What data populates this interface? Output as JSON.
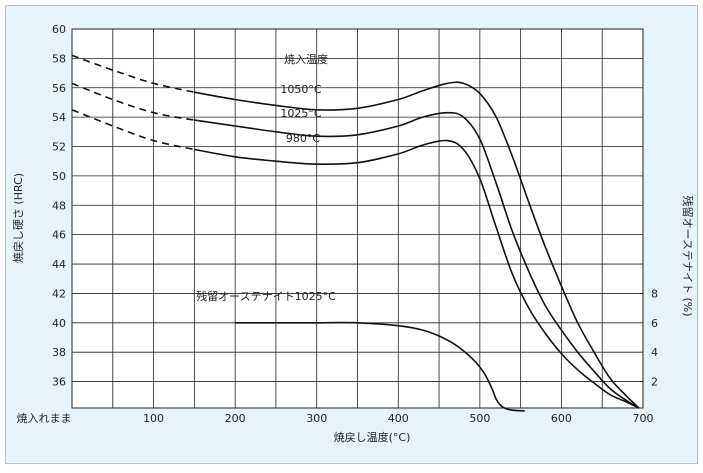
{
  "chart_data": {
    "type": "line",
    "title": "",
    "xlabel": "焼戻し温度(°C)",
    "ylabel": "焼戻し硬さ (HRC)",
    "y2label": "残留オーステナイト (%)",
    "x_ticks": [
      "焼入れまま",
      "100",
      "200",
      "300",
      "400",
      "500",
      "600",
      "700"
    ],
    "x_tick_values": [
      0,
      100,
      200,
      300,
      400,
      500,
      600,
      700
    ],
    "y_ticks": [
      36,
      38,
      40,
      42,
      44,
      46,
      48,
      50,
      52,
      54,
      56,
      58,
      60
    ],
    "y2_ticks": [
      2,
      4,
      6,
      8
    ],
    "xlim": [
      0,
      700
    ],
    "ylim": [
      34.2,
      60
    ],
    "y2lim": [
      0,
      8
    ],
    "grid": true,
    "legend_title": "焼入温度",
    "series": [
      {
        "name": "1050°C",
        "axis": "left",
        "dashed_until": 150,
        "x": [
          0,
          50,
          100,
          150,
          200,
          250,
          300,
          350,
          400,
          430,
          460,
          480,
          500,
          520,
          540,
          560,
          580,
          600,
          620,
          640,
          660,
          680,
          695
        ],
        "y": [
          58.2,
          57.2,
          56.3,
          55.7,
          55.2,
          54.8,
          54.5,
          54.6,
          55.2,
          55.8,
          56.3,
          56.3,
          55.6,
          54.0,
          51.3,
          48.2,
          45.2,
          42.5,
          40.0,
          38.0,
          36.2,
          35.0,
          34.2
        ]
      },
      {
        "name": "1025°C",
        "axis": "left",
        "dashed_until": 150,
        "x": [
          0,
          50,
          100,
          150,
          200,
          250,
          300,
          350,
          400,
          430,
          460,
          480,
          500,
          520,
          540,
          560,
          580,
          600,
          620,
          640,
          660,
          680,
          695
        ],
        "y": [
          56.3,
          55.2,
          54.3,
          53.8,
          53.4,
          53.0,
          52.7,
          52.8,
          53.4,
          54.0,
          54.3,
          54.0,
          52.5,
          49.5,
          46.2,
          43.5,
          41.2,
          39.5,
          38.0,
          36.7,
          35.5,
          34.7,
          34.2
        ]
      },
      {
        "name": "980°C",
        "axis": "left",
        "dashed_until": 150,
        "x": [
          0,
          50,
          100,
          150,
          200,
          250,
          300,
          350,
          400,
          430,
          460,
          480,
          500,
          520,
          540,
          560,
          580,
          600,
          620,
          640,
          660,
          680,
          695
        ],
        "y": [
          54.5,
          53.4,
          52.4,
          51.8,
          51.3,
          51.0,
          50.8,
          50.9,
          51.5,
          52.1,
          52.4,
          51.8,
          49.8,
          46.5,
          43.3,
          41.0,
          39.3,
          37.9,
          36.8,
          35.9,
          35.1,
          34.6,
          34.2
        ]
      },
      {
        "name": "残留オーステナイト1025°C",
        "axis": "right",
        "dashed_until": 0,
        "x": [
          200,
          250,
          300,
          350,
          400,
          430,
          450,
          470,
          490,
          505,
          515,
          520,
          525,
          530,
          540,
          555
        ],
        "y": [
          6.0,
          6.0,
          6.0,
          6.0,
          5.8,
          5.5,
          5.1,
          4.5,
          3.6,
          2.6,
          1.5,
          0.8,
          0.4,
          0.2,
          0.05,
          0.0
        ]
      }
    ]
  }
}
